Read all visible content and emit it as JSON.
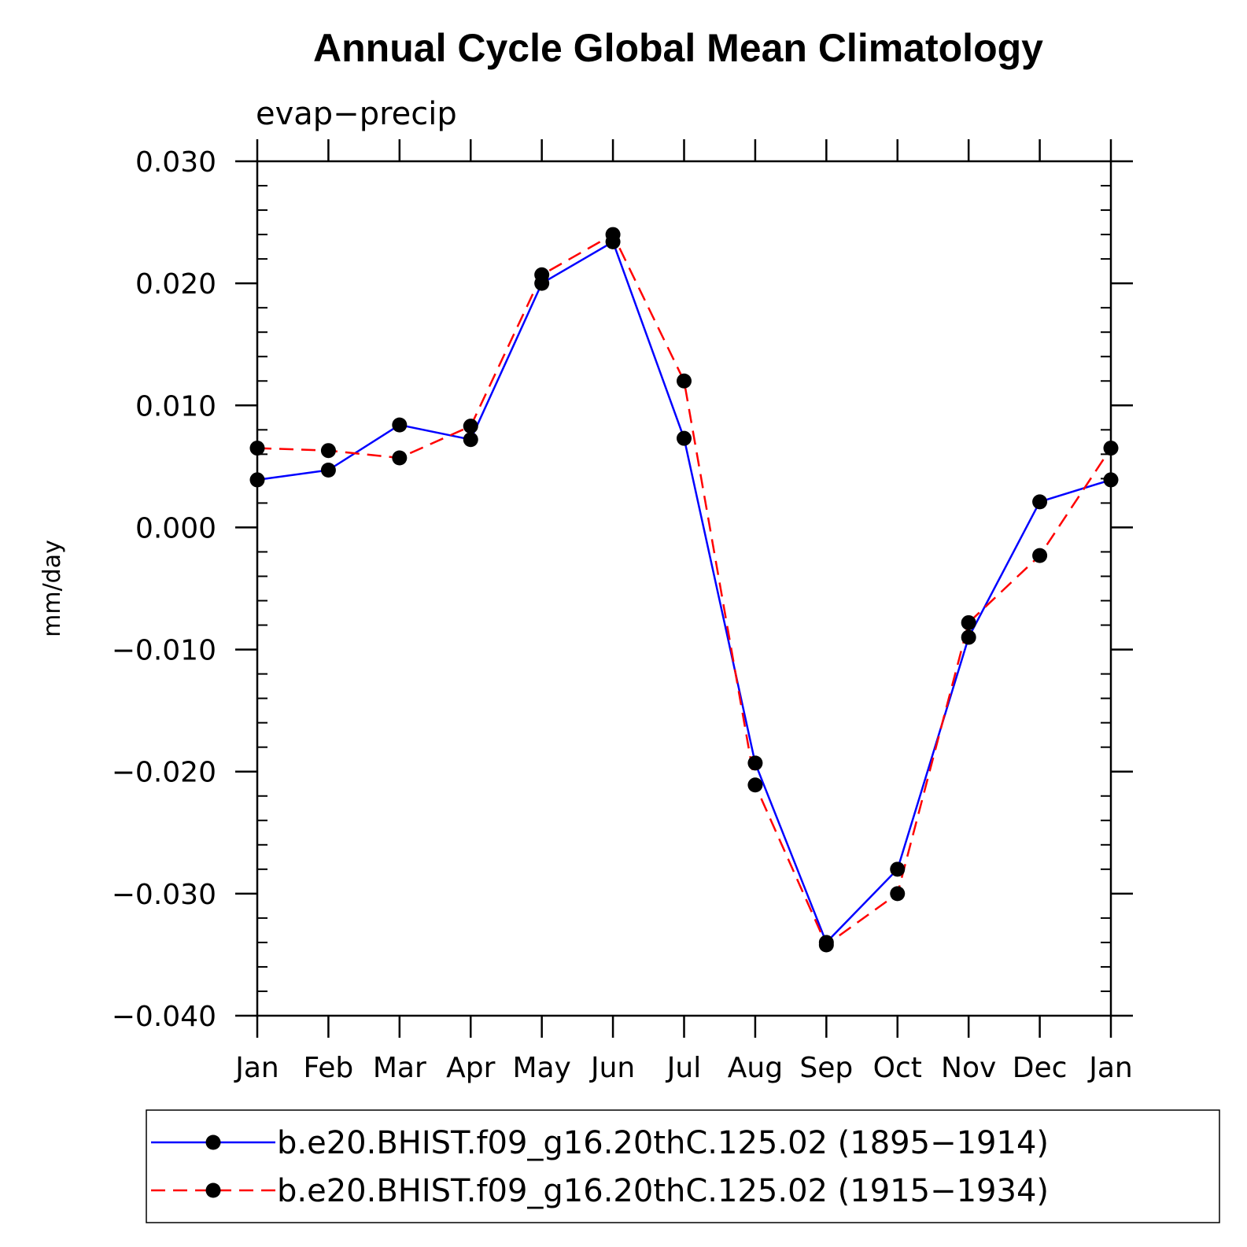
{
  "chart_data": {
    "type": "line",
    "title": "Annual Cycle Global Mean Climatology",
    "subtitle": "evap−precip",
    "ylabel": "mm/day",
    "xlabel": "",
    "categories": [
      "Jan",
      "Feb",
      "Mar",
      "Apr",
      "May",
      "Jun",
      "Jul",
      "Aug",
      "Sep",
      "Oct",
      "Nov",
      "Dec",
      "Jan"
    ],
    "ylim": [
      -0.04,
      0.03
    ],
    "yticks": [
      {
        "value": 0.03,
        "label": "0.030"
      },
      {
        "value": 0.02,
        "label": "0.020"
      },
      {
        "value": 0.01,
        "label": "0.010"
      },
      {
        "value": 0.0,
        "label": "0.000"
      },
      {
        "value": -0.01,
        "label": "−0.010"
      },
      {
        "value": -0.02,
        "label": "−0.020"
      },
      {
        "value": -0.03,
        "label": "−0.030"
      },
      {
        "value": -0.04,
        "label": "−0.040"
      }
    ],
    "grid": false,
    "legend_position": "bottom",
    "series": [
      {
        "name": "b.e20.BHIST.f09_g16.20thC.125.02 (1895−1914)",
        "color": "#0000ff",
        "line_style": "solid",
        "marker_color": "#000000",
        "values": [
          0.0039,
          0.0047,
          0.0084,
          0.0072,
          0.02,
          0.0234,
          0.0073,
          -0.0193,
          -0.034,
          -0.028,
          -0.009,
          0.0021,
          0.0039
        ]
      },
      {
        "name": "b.e20.BHIST.f09_g16.20thC.125.02 (1915−1934)",
        "color": "#ff0000",
        "line_style": "dashed",
        "marker_color": "#000000",
        "values": [
          0.0065,
          0.0063,
          0.0057,
          0.0083,
          0.0207,
          0.024,
          0.012,
          -0.0211,
          -0.0342,
          -0.03,
          -0.0078,
          -0.0023,
          0.0065
        ]
      }
    ]
  }
}
